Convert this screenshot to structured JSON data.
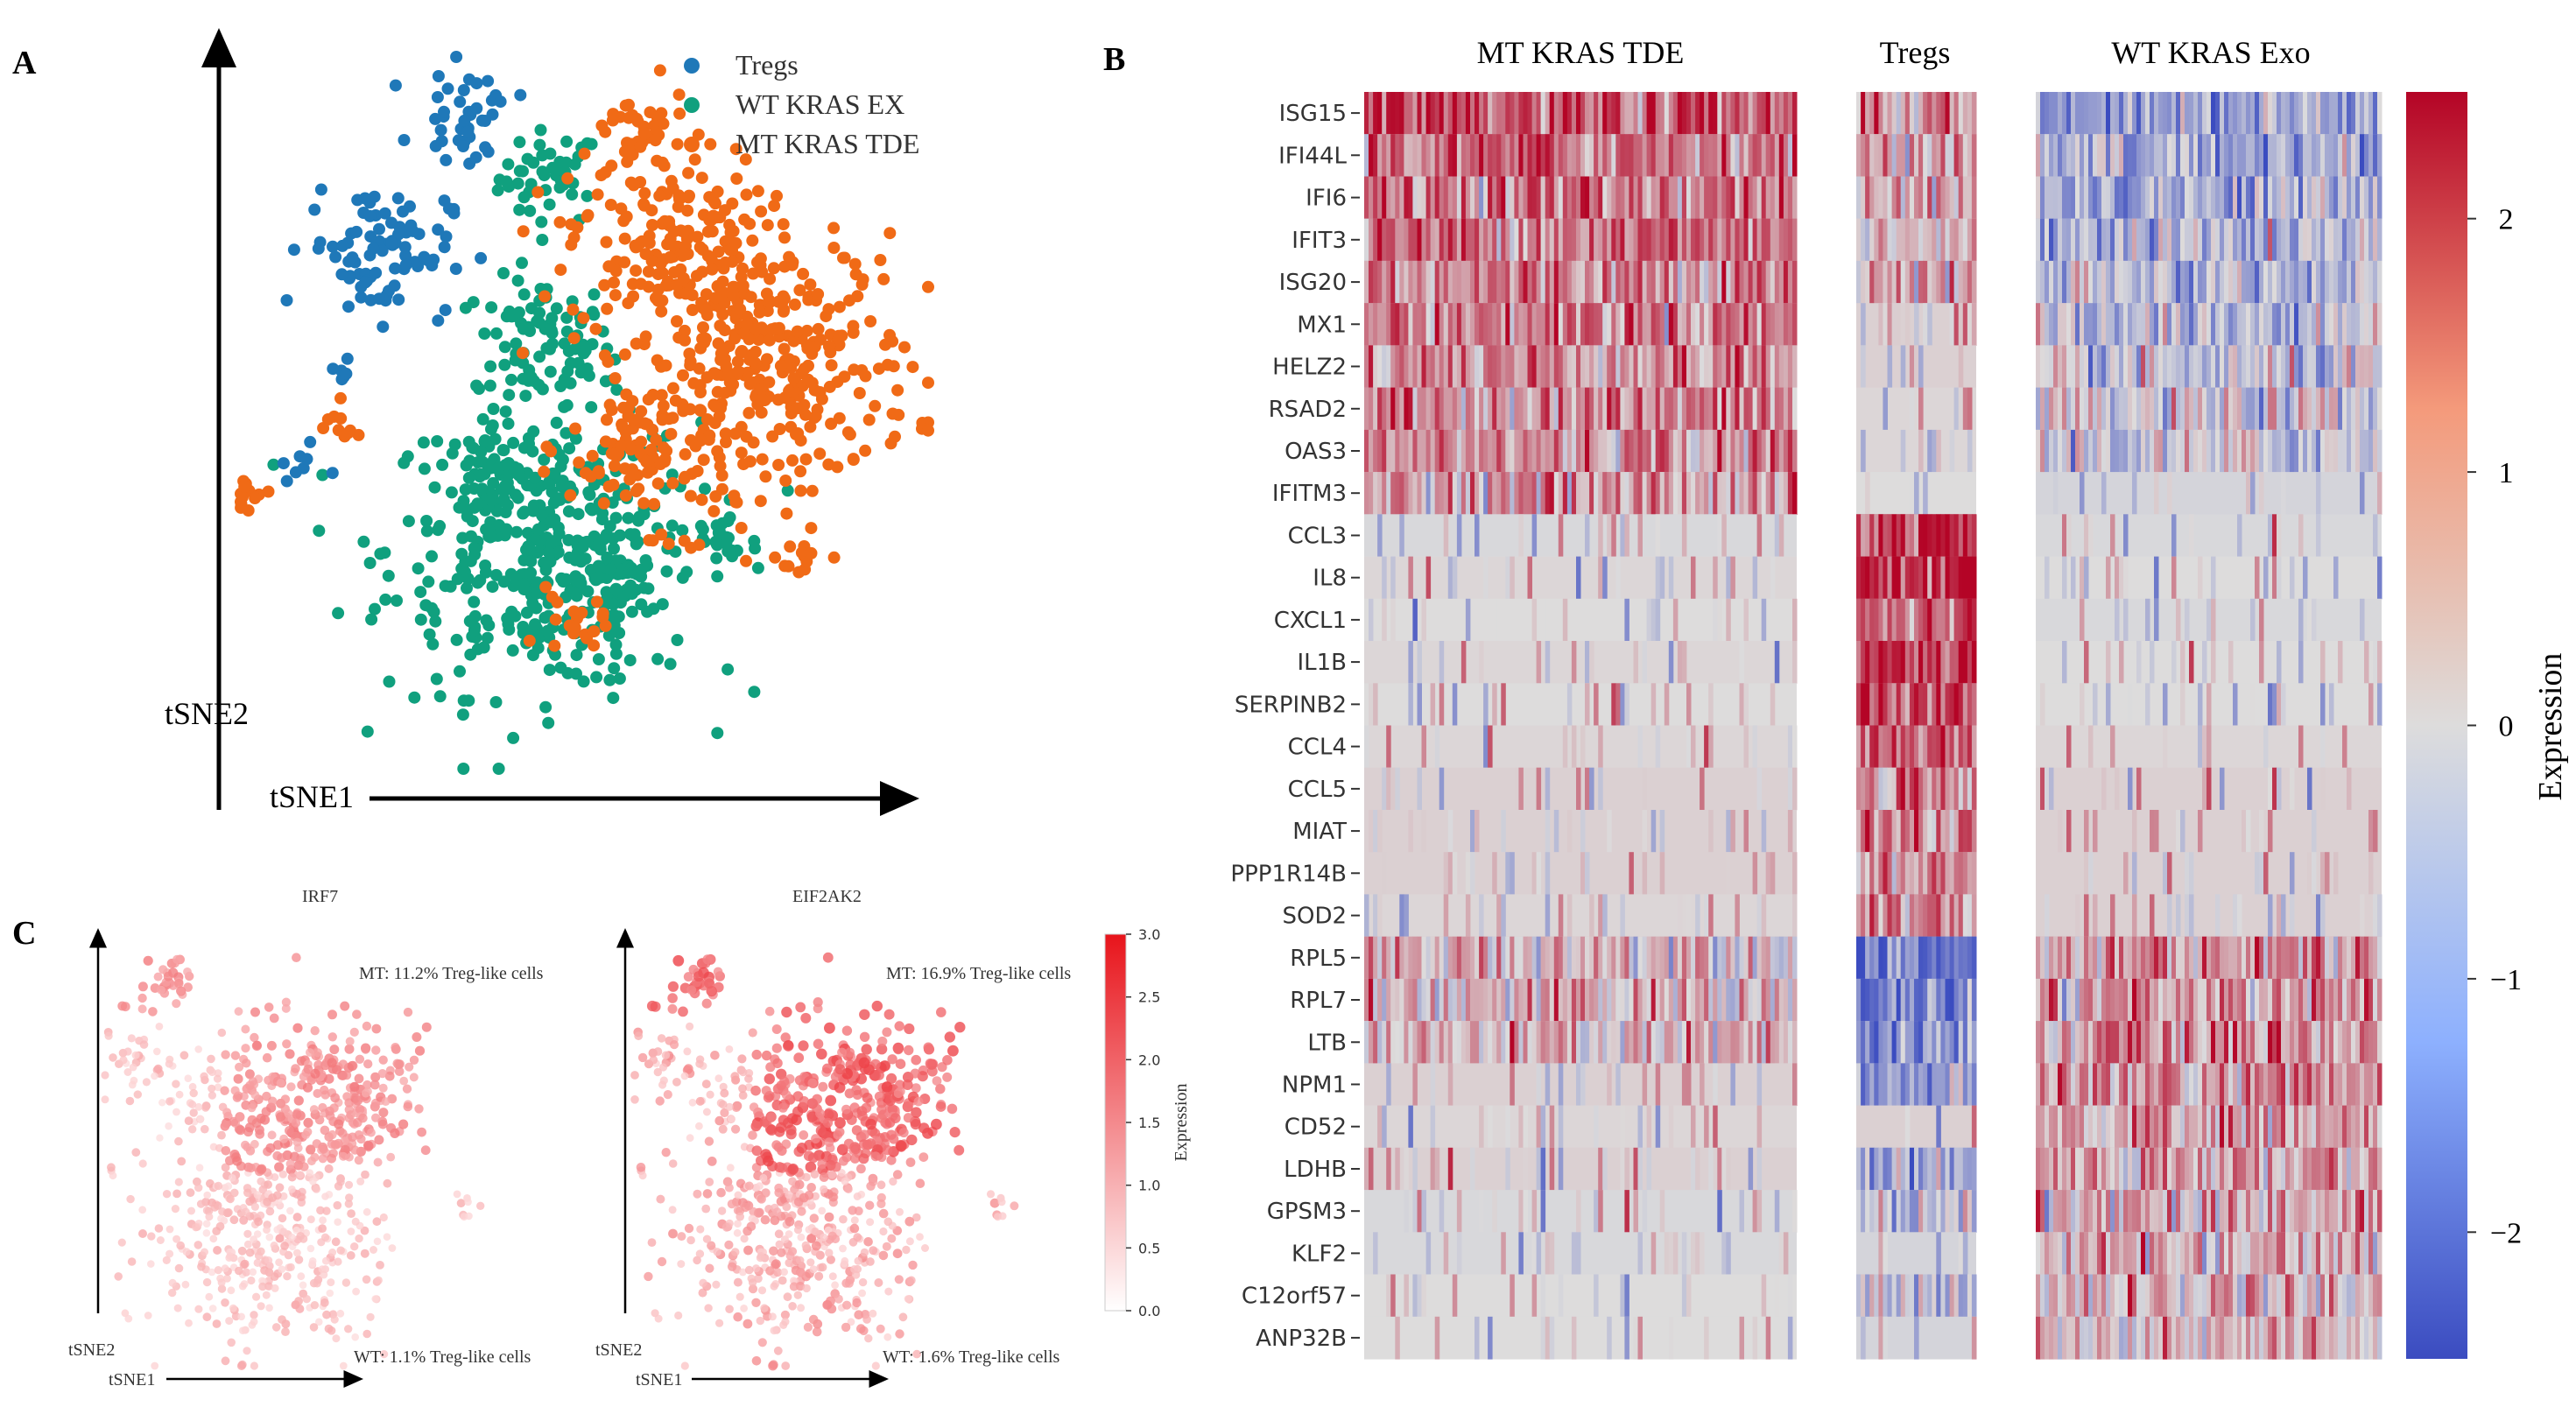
{
  "panels": {
    "a": "A",
    "b": "B",
    "c": "C"
  },
  "colors": {
    "tregs": "#1f78b8",
    "wt": "#10a07e",
    "mt": "#f06a16",
    "heat_low": "#3b4cc0",
    "heat_mid": "#dddcdc",
    "heat_high": "#b40426",
    "red": "#e8141b"
  },
  "chart_data": [
    {
      "type": "scatter",
      "id": "tsne_clusters",
      "title": "",
      "xlabel": "tSNE1",
      "ylabel": "tSNE2",
      "legend": {
        "position": "top-right",
        "entries": [
          "Tregs",
          "WT KRAS EX",
          "MT KRAS TDE"
        ]
      },
      "series": [
        {
          "name": "Tregs",
          "clusters": [
            [
              33,
              92,
              40
            ],
            [
              20,
              73,
              90
            ],
            [
              14,
              56,
              6
            ],
            [
              9,
              43,
              8
            ]
          ]
        },
        {
          "name": "WT KRAS EX",
          "clusters": [
            [
              45,
              83,
              45
            ],
            [
              44,
              60,
              80
            ],
            [
              44,
              31,
              420
            ],
            [
              52,
              26,
              60
            ],
            [
              70,
              32,
              25
            ],
            [
              37,
              42,
              45
            ]
          ]
        },
        {
          "name": "MT KRAS TDE",
          "clusters": [
            [
              62,
              74,
              170
            ],
            [
              78,
              57,
              320
            ],
            [
              60,
              45,
              120
            ],
            [
              58,
              89,
              40
            ],
            [
              14,
              48,
              10
            ],
            [
              1,
              38,
              14
            ],
            [
              82,
              30,
              12
            ],
            [
              48,
              20,
              20
            ]
          ]
        }
      ]
    },
    {
      "type": "heatmap",
      "id": "gene_heatmap",
      "groups": [
        "MT KRAS TDE",
        "Tregs",
        "WT KRAS Exo"
      ],
      "genes": [
        "ISG15",
        "IFI44L",
        "IFI6",
        "IFIT3",
        "ISG20",
        "MX1",
        "HELZ2",
        "RSAD2",
        "OAS3",
        "IFITM3",
        "CCL3",
        "IL8",
        "CXCL1",
        "IL1B",
        "SERPINB2",
        "CCL4",
        "CCL5",
        "MIAT",
        "PPP1R14B",
        "SOD2",
        "RPL5",
        "RPL7",
        "LTB",
        "NPM1",
        "CD52",
        "LDHB",
        "GPSM3",
        "KLF2",
        "C12orf57",
        "ANP32B"
      ],
      "mean_expression": [
        [
          1.4,
          0.8,
          -0.9
        ],
        [
          1.3,
          0.5,
          -0.9
        ],
        [
          1.2,
          0.6,
          -0.8
        ],
        [
          1.3,
          0.3,
          -0.7
        ],
        [
          1.1,
          0.4,
          -0.6
        ],
        [
          1.2,
          0.2,
          -0.6
        ],
        [
          1.0,
          0.2,
          -0.5
        ],
        [
          1.0,
          0.1,
          -0.3
        ],
        [
          0.9,
          0.1,
          -0.3
        ],
        [
          0.8,
          0.0,
          -0.2
        ],
        [
          -0.1,
          2.0,
          -0.1
        ],
        [
          0.1,
          2.1,
          0.0
        ],
        [
          0.0,
          1.8,
          -0.1
        ],
        [
          0.1,
          2.0,
          0.0
        ],
        [
          0.0,
          1.7,
          0.0
        ],
        [
          0.1,
          1.5,
          0.1
        ],
        [
          0.2,
          1.3,
          0.2
        ],
        [
          0.2,
          1.1,
          0.2
        ],
        [
          0.2,
          1.0,
          0.2
        ],
        [
          0.1,
          0.8,
          0.2
        ],
        [
          0.5,
          -1.8,
          0.9
        ],
        [
          0.4,
          -1.6,
          0.9
        ],
        [
          0.3,
          -1.3,
          0.8
        ],
        [
          0.2,
          -1.2,
          0.7
        ],
        [
          0.1,
          0.2,
          0.7
        ],
        [
          0.2,
          -0.8,
          0.6
        ],
        [
          -0.1,
          -0.3,
          0.6
        ],
        [
          -0.1,
          -0.2,
          0.5
        ],
        [
          0.0,
          -0.3,
          0.5
        ],
        [
          0.0,
          -0.2,
          0.4
        ]
      ],
      "colorbar": {
        "label": "Expression",
        "range": [
          -2.5,
          2.5
        ],
        "ticks": [
          "2",
          "1",
          "0",
          "−1",
          "−2"
        ],
        "tick_values": [
          2,
          1,
          0,
          -1,
          -2
        ]
      }
    },
    {
      "type": "scatter",
      "id": "irf7",
      "title": "IRF7",
      "xlabel": "tSNE1",
      "ylabel": "tSNE2",
      "annotations": [
        "MT: 11.2% Treg-like cells",
        "WT: 1.1% Treg-like cells"
      ],
      "expression_level": 0.55
    },
    {
      "type": "scatter",
      "id": "eif2ak2",
      "title": "EIF2AK2",
      "xlabel": "tSNE1",
      "ylabel": "tSNE2",
      "annotations": [
        "MT: 16.9% Treg-like cells",
        "WT: 1.6% Treg-like cells"
      ],
      "expression_level": 0.8
    },
    {
      "type": "colorbar",
      "id": "expr_colorbar_c",
      "label": "Expression",
      "range": [
        0,
        3
      ],
      "ticks": [
        "3.0",
        "2.5",
        "2.0",
        "1.5",
        "1.0",
        "0.5",
        "0.0"
      ],
      "tick_values": [
        3.0,
        2.5,
        2.0,
        1.5,
        1.0,
        0.5,
        0.0
      ]
    }
  ]
}
